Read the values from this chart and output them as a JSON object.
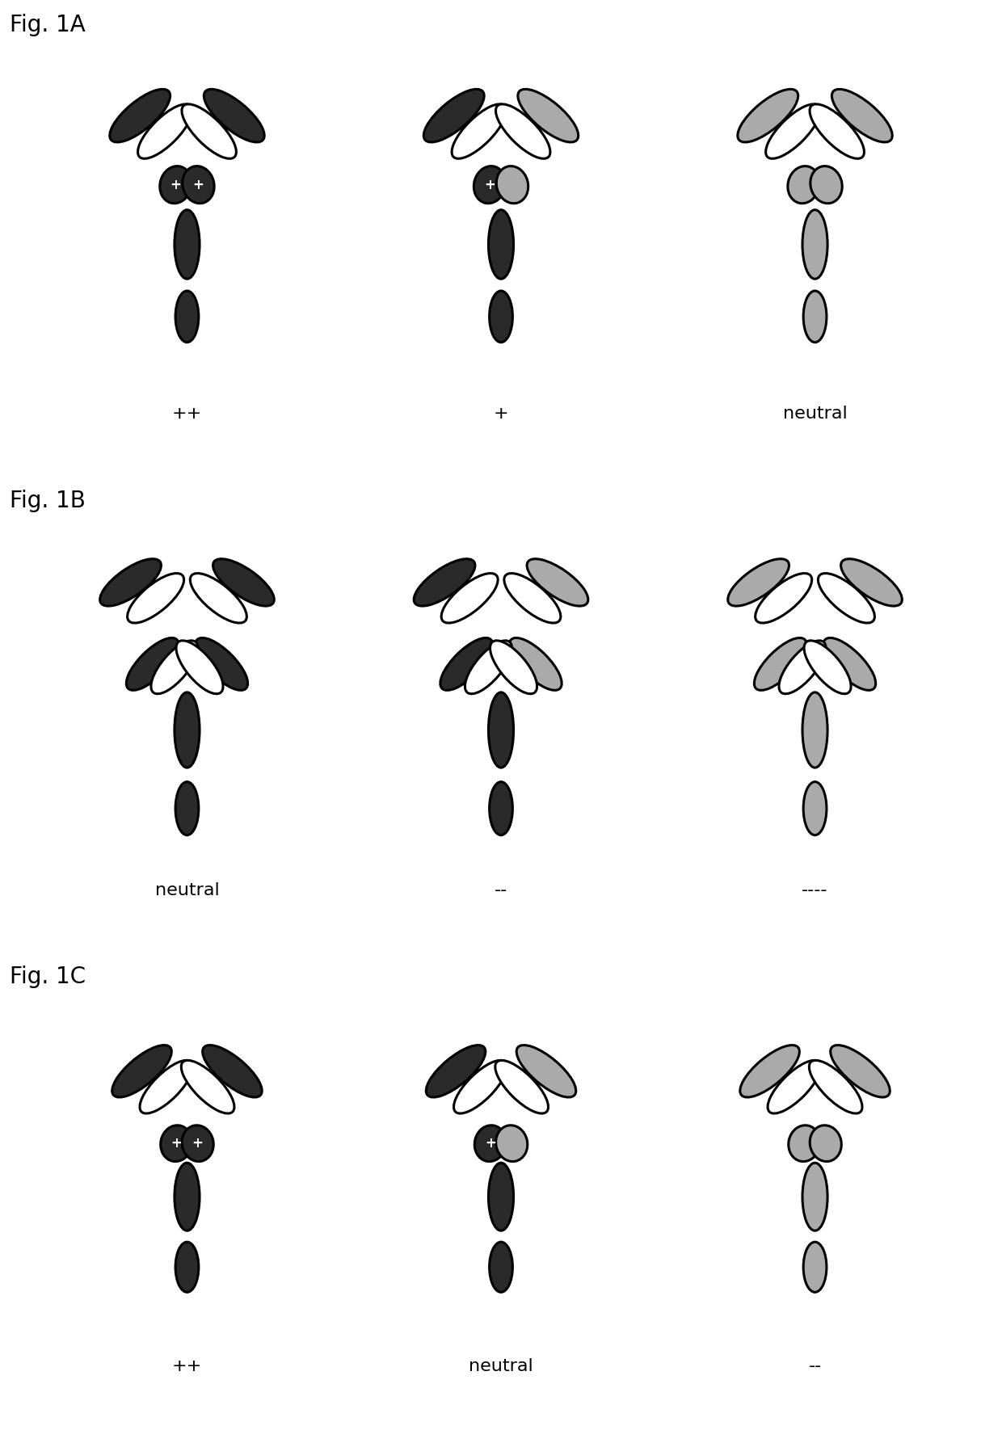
{
  "figure_labels": [
    "Fig. 1A",
    "Fig. 1B",
    "Fig. 1C"
  ],
  "fig_label_fontsize": 20,
  "background_color": "#ffffff",
  "black_color": "#2a2a2a",
  "gray_color": "#aaaaaa",
  "panel_labels": [
    [
      "++",
      "+",
      "neutral"
    ],
    [
      "neutral",
      "--",
      "----"
    ],
    [
      "++",
      "neutral",
      "--"
    ]
  ],
  "label_fontsize": 16
}
